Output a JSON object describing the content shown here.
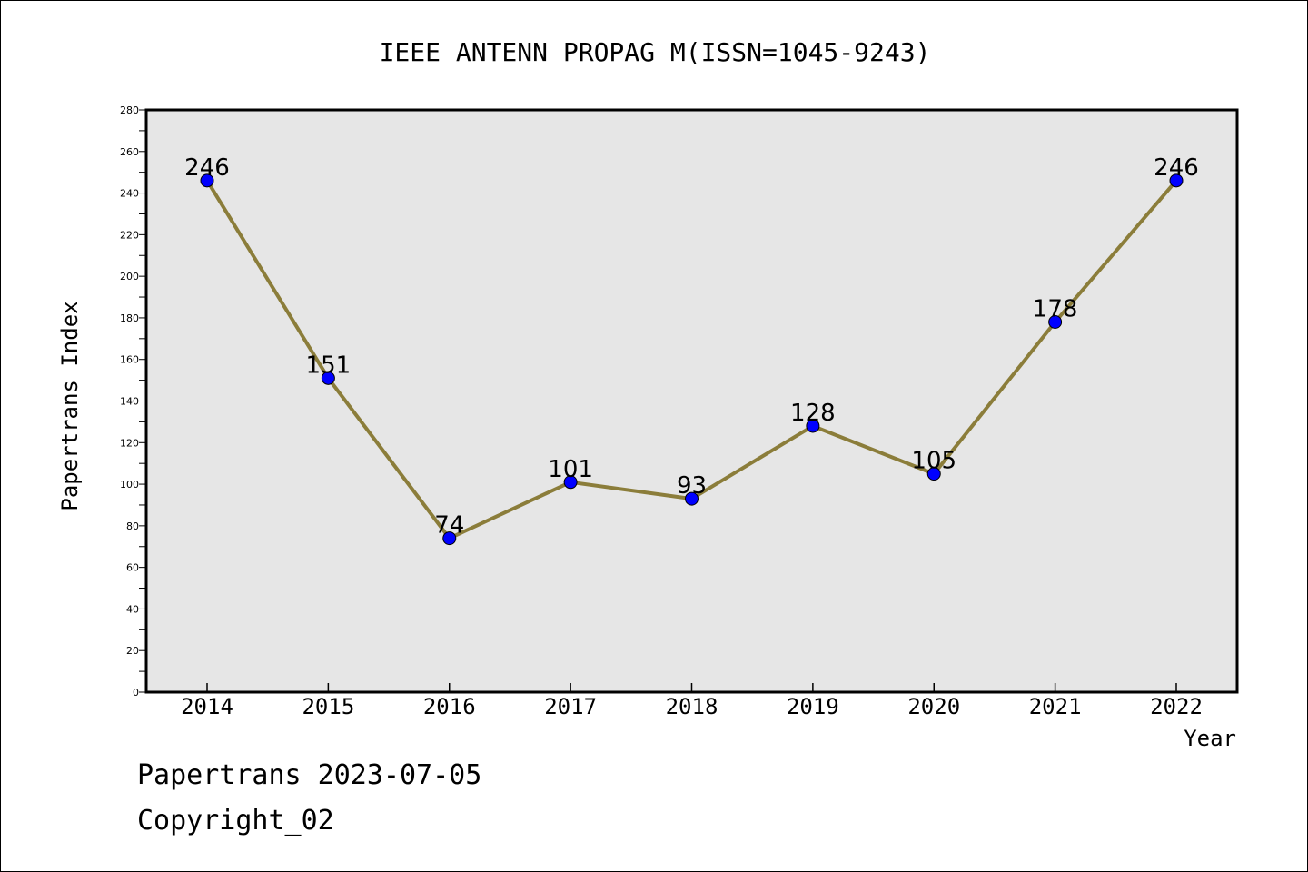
{
  "chart_data": {
    "type": "line",
    "title": "IEEE ANTENN PROPAG M(ISSN=1045-9243)",
    "xlabel": "Year",
    "ylabel": "Papertrans Index",
    "categories": [
      "2014",
      "2015",
      "2016",
      "2017",
      "2018",
      "2019",
      "2020",
      "2021",
      "2022"
    ],
    "series": [
      {
        "values": [
          246,
          151,
          74,
          101,
          93,
          128,
          105,
          178,
          246
        ]
      }
    ],
    "data_labels": [
      "246",
      "151",
      "74",
      "101",
      "93",
      "128",
      "105",
      "178",
      "246"
    ],
    "ylim": [
      0,
      280
    ],
    "yticks": [
      0,
      20,
      40,
      60,
      80,
      100,
      120,
      140,
      160,
      180,
      200,
      220,
      240,
      260,
      280
    ],
    "grid": false,
    "colors": {
      "line": "#8B7D3A",
      "marker": "#0000FF",
      "plot_background": "#E6E6E6"
    }
  },
  "footer": {
    "line1": "Papertrans 2023-07-05",
    "line2": "Copyright_02"
  }
}
